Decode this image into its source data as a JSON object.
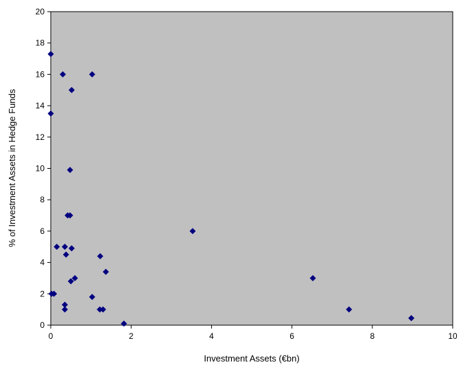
{
  "chart_data": {
    "type": "scatter",
    "title": "",
    "xlabel": "Investment Assets (€bn)",
    "ylabel": "% of Investment Assets in Hedge Funds",
    "xlim": [
      0,
      10
    ],
    "ylim": [
      0,
      20
    ],
    "x_ticks": [
      0,
      2,
      4,
      6,
      8,
      10
    ],
    "y_ticks": [
      0,
      2,
      4,
      6,
      8,
      10,
      12,
      14,
      16,
      18,
      20
    ],
    "grid": false,
    "legend": "none",
    "plot_background": "#c0c0c0",
    "marker_color": "#000080",
    "marker_shape": "diamond",
    "series": [
      {
        "points": [
          [
            0.0,
            17.3
          ],
          [
            0.0,
            13.5
          ],
          [
            0.3,
            16.0
          ],
          [
            0.52,
            15.0
          ],
          [
            1.03,
            16.0
          ],
          [
            0.48,
            9.9
          ],
          [
            0.42,
            7.0
          ],
          [
            0.48,
            7.0
          ],
          [
            0.15,
            5.0
          ],
          [
            0.35,
            5.0
          ],
          [
            0.52,
            4.9
          ],
          [
            0.38,
            4.5
          ],
          [
            1.23,
            4.4
          ],
          [
            1.37,
            3.4
          ],
          [
            0.6,
            3.0
          ],
          [
            0.5,
            2.8
          ],
          [
            0.02,
            2.0
          ],
          [
            0.08,
            2.0
          ],
          [
            0.35,
            1.3
          ],
          [
            0.35,
            1.0
          ],
          [
            1.03,
            1.8
          ],
          [
            1.22,
            1.0
          ],
          [
            1.3,
            1.0
          ],
          [
            1.82,
            0.1
          ],
          [
            3.53,
            6.0
          ],
          [
            6.52,
            3.0
          ],
          [
            7.42,
            1.0
          ],
          [
            8.97,
            0.45
          ]
        ]
      }
    ]
  }
}
